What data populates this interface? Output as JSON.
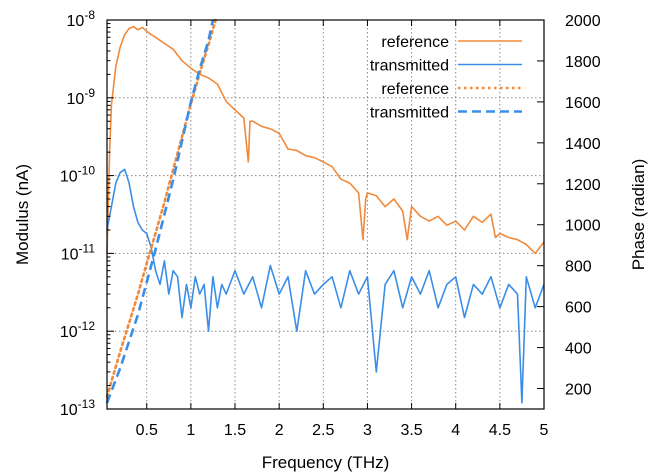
{
  "chart_data": {
    "type": "line",
    "xlabel": "Frequency (THz)",
    "ylabel": "Modulus (nA)",
    "y2label": "Phase (radian)",
    "xlim": [
      0.05,
      5.0
    ],
    "ylim": [
      1e-13,
      1e-08
    ],
    "y_scale": "log",
    "y2lim": [
      100,
      2000
    ],
    "grid": true,
    "legend_position": "top-right",
    "x_ticks": [
      "0.5",
      "1",
      "1.5",
      "2",
      "2.5",
      "3",
      "3.5",
      "4",
      "4.5",
      "5"
    ],
    "x_tick_values": [
      0.5,
      1,
      1.5,
      2,
      2.5,
      3,
      3.5,
      4,
      4.5,
      5
    ],
    "y_ticks": [
      {
        "base": "10",
        "exp": "-8",
        "value": 1e-08
      },
      {
        "base": "10",
        "exp": "-9",
        "value": 1e-09
      },
      {
        "base": "10",
        "exp": "-10",
        "value": 1e-10
      },
      {
        "base": "10",
        "exp": "-11",
        "value": 1e-11
      },
      {
        "base": "10",
        "exp": "-12",
        "value": 1e-12
      },
      {
        "base": "10",
        "exp": "-13",
        "value": 1e-13
      }
    ],
    "y2_ticks": [
      "200",
      "400",
      "600",
      "800",
      "1000",
      "1200",
      "1400",
      "1600",
      "1800",
      "2000"
    ],
    "y2_tick_values": [
      200,
      400,
      600,
      800,
      1000,
      1200,
      1400,
      1600,
      1800,
      2000
    ],
    "series": [
      {
        "name": "reference",
        "axis": "y",
        "color": "#f08a3c",
        "style": "solid",
        "x": [
          0.05,
          0.08,
          0.1,
          0.15,
          0.2,
          0.25,
          0.3,
          0.35,
          0.4,
          0.45,
          0.5,
          0.55,
          0.6,
          0.7,
          0.8,
          0.9,
          1.0,
          1.1,
          1.2,
          1.3,
          1.4,
          1.5,
          1.6,
          1.65,
          1.67,
          1.7,
          1.8,
          1.9,
          2.0,
          2.1,
          2.2,
          2.3,
          2.4,
          2.5,
          2.6,
          2.7,
          2.8,
          2.9,
          2.95,
          2.98,
          3.0,
          3.1,
          3.2,
          3.3,
          3.4,
          3.45,
          3.5,
          3.6,
          3.7,
          3.8,
          3.9,
          4.0,
          4.1,
          4.2,
          4.3,
          4.4,
          4.45,
          4.5,
          4.6,
          4.7,
          4.8,
          4.9,
          5.0
        ],
        "values": [
          1e-11,
          2e-10,
          8e-10,
          2.5e-09,
          4.5e-09,
          6.5e-09,
          7.8e-09,
          8.2e-09,
          7.5e-09,
          8e-09,
          7.2e-09,
          6.5e-09,
          6e-09,
          5e-09,
          4.2e-09,
          3e-09,
          2.4e-09,
          2e-09,
          1.8e-09,
          1.5e-09,
          9e-10,
          7e-10,
          5.5e-10,
          1.5e-10,
          5e-10,
          5e-10,
          4.3e-10,
          4e-10,
          3.5e-10,
          2.2e-10,
          2.1e-10,
          1.8e-10,
          1.7e-10,
          1.5e-10,
          1.3e-10,
          9e-11,
          8e-11,
          6e-11,
          1.5e-11,
          5e-11,
          6e-11,
          5.5e-11,
          4e-11,
          5e-11,
          3.5e-11,
          1.5e-11,
          4e-11,
          3e-11,
          2.6e-11,
          3e-11,
          2.3e-11,
          2.6e-11,
          2e-11,
          3e-11,
          2.5e-11,
          3.2e-11,
          1.6e-11,
          1.8e-11,
          1.6e-11,
          1.5e-11,
          1.3e-11,
          1e-11,
          1.4e-11
        ]
      },
      {
        "name": "transmitted",
        "axis": "y",
        "color": "#3b8ee8",
        "style": "solid",
        "x": [
          0.05,
          0.1,
          0.15,
          0.2,
          0.25,
          0.3,
          0.35,
          0.4,
          0.45,
          0.5,
          0.55,
          0.6,
          0.65,
          0.7,
          0.75,
          0.8,
          0.85,
          0.9,
          0.95,
          1.0,
          1.05,
          1.1,
          1.15,
          1.2,
          1.25,
          1.3,
          1.35,
          1.4,
          1.5,
          1.6,
          1.7,
          1.8,
          1.9,
          2.0,
          2.1,
          2.2,
          2.3,
          2.4,
          2.5,
          2.6,
          2.7,
          2.8,
          2.9,
          3.0,
          3.1,
          3.2,
          3.3,
          3.4,
          3.5,
          3.6,
          3.7,
          3.8,
          3.9,
          4.0,
          4.1,
          4.2,
          4.3,
          4.4,
          4.5,
          4.6,
          4.7,
          4.75,
          4.8,
          4.9,
          5.0
        ],
        "values": [
          2e-11,
          4e-11,
          8e-11,
          1.1e-10,
          1.2e-10,
          8e-11,
          4e-11,
          2.5e-11,
          2e-11,
          1.8e-11,
          1.2e-11,
          6e-12,
          4e-12,
          8e-12,
          3e-12,
          6e-12,
          5e-12,
          1.5e-12,
          4e-12,
          2e-12,
          5e-12,
          3e-12,
          4e-12,
          1e-12,
          5e-12,
          2e-12,
          4e-12,
          3e-12,
          6e-12,
          3e-12,
          5e-12,
          2e-12,
          7e-12,
          3e-12,
          5e-12,
          1e-12,
          6e-12,
          3e-12,
          4e-12,
          5e-12,
          2e-12,
          6e-12,
          3e-12,
          5e-12,
          3e-13,
          4e-12,
          6e-12,
          2e-12,
          5e-12,
          3e-12,
          6e-12,
          2e-12,
          4e-12,
          5e-12,
          1.5e-12,
          4e-12,
          3e-12,
          5e-12,
          2e-12,
          4e-12,
          3e-12,
          1.2e-13,
          5e-12,
          2e-12,
          4e-12
        ]
      },
      {
        "name": "reference",
        "axis": "y2",
        "color": "#f08a3c",
        "style": "dotted",
        "x": [
          0.05,
          0.2,
          0.3,
          0.4,
          0.5,
          0.6,
          0.7,
          0.8,
          0.9,
          1.0,
          1.1,
          1.2,
          1.28
        ],
        "values": [
          160,
          380,
          520,
          660,
          810,
          960,
          1110,
          1270,
          1430,
          1590,
          1740,
          1880,
          2000
        ]
      },
      {
        "name": "transmitted",
        "axis": "y2",
        "color": "#3b8ee8",
        "style": "dashed",
        "x": [
          0.05,
          0.2,
          0.4,
          0.6,
          0.8,
          1.0,
          1.1,
          1.2,
          1.25
        ],
        "values": [
          130,
          300,
          560,
          880,
          1220,
          1600,
          1760,
          1900,
          2000
        ]
      }
    ]
  }
}
